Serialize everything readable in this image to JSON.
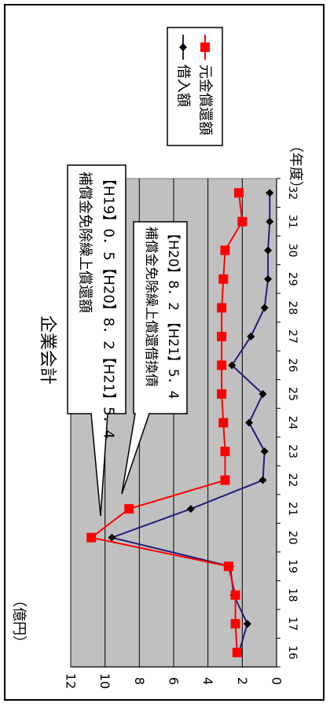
{
  "chart_data": {
    "type": "line",
    "title": "企業会計",
    "ylabel": "（億円）",
    "xlabel": "（年度）",
    "categories": [
      "16",
      "17",
      "18",
      "19",
      "20",
      "21",
      "22",
      "23",
      "24",
      "25",
      "26",
      "27",
      "28",
      "29",
      "30",
      "31",
      "32"
    ],
    "ylim": [
      0,
      12
    ],
    "yticks": [
      "0",
      "2",
      "4",
      "6",
      "8",
      "10",
      "12"
    ],
    "grid": true,
    "legend_position": "top-right",
    "series": [
      {
        "name": "借入額",
        "color": "#1f1f7a",
        "marker": "diamond",
        "values": [
          2.2,
          1.7,
          2.5,
          2.7,
          9.6,
          5.0,
          0.8,
          0.7,
          1.6,
          0.8,
          2.6,
          1.5,
          0.7,
          0.5,
          0.5,
          0.4,
          0.4
        ]
      },
      {
        "name": "元金償還額",
        "color": "#ff0000",
        "marker": "square",
        "values": [
          2.3,
          2.4,
          2.4,
          2.8,
          10.8,
          8.6,
          3.0,
          3.0,
          3.1,
          3.2,
          3.2,
          3.2,
          3.2,
          3.1,
          3.0,
          2.0,
          2.2
        ]
      }
    ],
    "annotations": [
      {
        "line1": "補償金免除繰上償還額",
        "line2": "【H19】0．5【H20】8．2【H21】5．4"
      },
      {
        "line1": "補償金免除繰上償還借換債",
        "line2": "【H20】8．2 【H21】5．4"
      }
    ]
  }
}
